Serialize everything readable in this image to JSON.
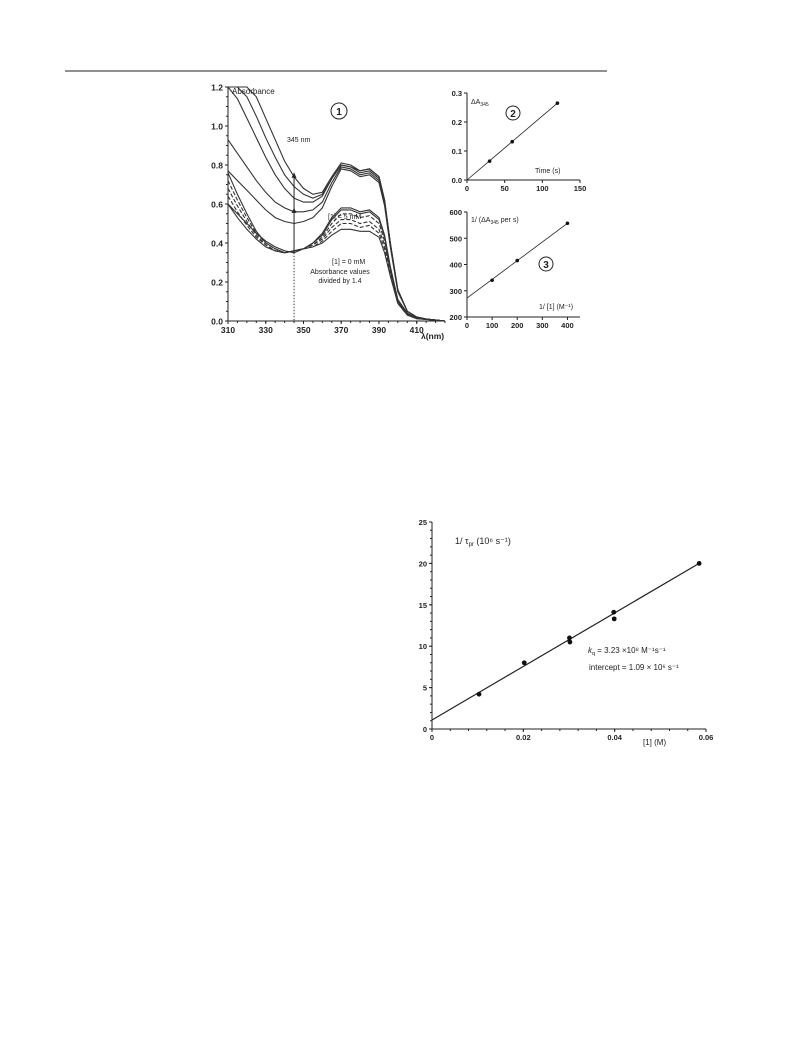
{
  "chart_data": [
    {
      "type": "line",
      "panel": "1",
      "ylabel": "Absorbance",
      "xlabel": "λ(nm)",
      "xlim": [
        310,
        425
      ],
      "ylim": [
        0,
        1.2
      ],
      "x_ticks": [
        "310",
        "330",
        "350",
        "370",
        "390",
        "410"
      ],
      "y_ticks": [
        "0.0",
        "0.2",
        "0.4",
        "0.6",
        "0.8",
        "1.0",
        "1.2"
      ],
      "annotations": {
        "wavelength": "345 nm",
        "high_conc": "[1] = 5 mM",
        "zero_conc": "[1] = 0 mM",
        "note_line1": "Absorbance values",
        "note_line2": "divided by 1.4"
      },
      "marked_wavelength": 345,
      "series": [
        {
          "style": "solid",
          "group": "5 mM",
          "x": [
            310,
            315,
            320,
            325,
            330,
            335,
            340,
            345,
            350,
            355,
            360,
            365,
            370,
            375,
            380,
            385,
            390,
            393,
            396,
            400,
            405,
            410,
            415,
            420,
            425
          ],
          "y": [
            1.2,
            1.2,
            1.2,
            1.15,
            1.04,
            0.93,
            0.82,
            0.74,
            0.68,
            0.65,
            0.66,
            0.74,
            0.81,
            0.8,
            0.77,
            0.78,
            0.74,
            0.62,
            0.4,
            0.16,
            0.05,
            0.02,
            0.01,
            0.005,
            0.0
          ]
        },
        {
          "style": "solid",
          "group": "5 mM",
          "x": [
            310,
            315,
            320,
            325,
            330,
            335,
            340,
            345,
            350,
            355,
            360,
            365,
            370,
            375,
            380,
            385,
            390,
            393,
            396,
            400,
            405,
            410,
            415,
            420,
            425
          ],
          "y": [
            1.2,
            1.2,
            1.15,
            1.05,
            0.94,
            0.84,
            0.75,
            0.69,
            0.65,
            0.63,
            0.65,
            0.73,
            0.8,
            0.79,
            0.77,
            0.78,
            0.74,
            0.62,
            0.4,
            0.16,
            0.05,
            0.02,
            0.01,
            0.005,
            0.0
          ]
        },
        {
          "style": "solid",
          "group": "5 mM",
          "x": [
            310,
            315,
            320,
            325,
            330,
            335,
            340,
            345,
            350,
            355,
            360,
            365,
            370,
            375,
            380,
            385,
            390,
            393,
            396,
            400,
            405,
            410,
            415,
            420,
            425
          ],
          "y": [
            1.2,
            1.14,
            1.04,
            0.94,
            0.84,
            0.75,
            0.68,
            0.63,
            0.61,
            0.61,
            0.64,
            0.73,
            0.8,
            0.79,
            0.76,
            0.77,
            0.73,
            0.61,
            0.4,
            0.16,
            0.05,
            0.02,
            0.01,
            0.005,
            0.0
          ]
        },
        {
          "style": "solid",
          "group": "5 mM",
          "x": [
            310,
            315,
            320,
            325,
            330,
            335,
            340,
            345,
            350,
            355,
            360,
            365,
            370,
            375,
            380,
            385,
            390,
            393,
            396,
            400,
            405,
            410,
            415,
            420,
            425
          ],
          "y": [
            0.93,
            0.86,
            0.79,
            0.72,
            0.66,
            0.61,
            0.58,
            0.56,
            0.56,
            0.57,
            0.61,
            0.71,
            0.79,
            0.78,
            0.75,
            0.76,
            0.72,
            0.6,
            0.39,
            0.16,
            0.05,
            0.02,
            0.01,
            0.005,
            0.0
          ]
        },
        {
          "style": "solid",
          "group": "5 mM",
          "x": [
            310,
            315,
            320,
            325,
            330,
            335,
            340,
            345,
            350,
            355,
            360,
            365,
            370,
            375,
            380,
            385,
            390,
            393,
            396,
            400,
            405,
            410,
            415,
            420,
            425
          ],
          "y": [
            0.77,
            0.72,
            0.67,
            0.62,
            0.57,
            0.53,
            0.51,
            0.5,
            0.51,
            0.53,
            0.58,
            0.69,
            0.78,
            0.77,
            0.74,
            0.75,
            0.71,
            0.59,
            0.38,
            0.15,
            0.05,
            0.02,
            0.01,
            0.005,
            0.0
          ]
        },
        {
          "style": "solid",
          "group": "0 mM",
          "x": [
            310,
            315,
            320,
            325,
            330,
            335,
            340,
            345,
            350,
            355,
            360,
            365,
            370,
            375,
            380,
            385,
            390,
            393,
            396,
            400,
            405,
            410,
            415,
            420,
            425
          ],
          "y": [
            0.6,
            0.55,
            0.5,
            0.45,
            0.41,
            0.38,
            0.36,
            0.35,
            0.37,
            0.4,
            0.45,
            0.53,
            0.58,
            0.58,
            0.56,
            0.57,
            0.53,
            0.44,
            0.28,
            0.11,
            0.04,
            0.015,
            0.01,
            0.005,
            0.0
          ]
        },
        {
          "style": "solid",
          "group": "0 mM",
          "x": [
            310,
            315,
            320,
            325,
            330,
            335,
            340,
            345,
            350,
            355,
            360,
            365,
            370,
            375,
            380,
            385,
            390,
            393,
            396,
            400,
            405,
            410,
            415,
            420,
            425
          ],
          "y": [
            0.76,
            0.65,
            0.55,
            0.46,
            0.4,
            0.37,
            0.35,
            0.36,
            0.37,
            0.4,
            0.44,
            0.52,
            0.57,
            0.57,
            0.55,
            0.56,
            0.52,
            0.43,
            0.27,
            0.11,
            0.04,
            0.015,
            0.01,
            0.005,
            0.0
          ]
        },
        {
          "style": "dashed",
          "group": "0 mM",
          "x": [
            310,
            315,
            320,
            325,
            330,
            335,
            340,
            345,
            350,
            355,
            360,
            365,
            370,
            375,
            380,
            385,
            390,
            393,
            396,
            400,
            405,
            410,
            415,
            420,
            425
          ],
          "y": [
            0.72,
            0.62,
            0.53,
            0.45,
            0.4,
            0.37,
            0.35,
            0.36,
            0.37,
            0.39,
            0.43,
            0.5,
            0.55,
            0.55,
            0.53,
            0.54,
            0.5,
            0.41,
            0.26,
            0.1,
            0.035,
            0.015,
            0.01,
            0.005,
            0.0
          ]
        },
        {
          "style": "dashed",
          "group": "0 mM",
          "x": [
            310,
            315,
            320,
            325,
            330,
            335,
            340,
            345,
            350,
            355,
            360,
            365,
            370,
            375,
            380,
            385,
            390,
            393,
            396,
            400,
            405,
            410,
            415,
            420,
            425
          ],
          "y": [
            0.68,
            0.59,
            0.51,
            0.44,
            0.39,
            0.36,
            0.35,
            0.36,
            0.37,
            0.39,
            0.42,
            0.48,
            0.52,
            0.52,
            0.5,
            0.51,
            0.47,
            0.39,
            0.25,
            0.1,
            0.035,
            0.015,
            0.01,
            0.005,
            0.0
          ]
        },
        {
          "style": "dashed",
          "group": "0 mM",
          "x": [
            310,
            315,
            320,
            325,
            330,
            335,
            340,
            345,
            350,
            355,
            360,
            365,
            370,
            375,
            380,
            385,
            390,
            393,
            396,
            400,
            405,
            410,
            415,
            420,
            425
          ],
          "y": [
            0.64,
            0.56,
            0.49,
            0.43,
            0.39,
            0.36,
            0.35,
            0.36,
            0.37,
            0.38,
            0.41,
            0.46,
            0.5,
            0.5,
            0.48,
            0.49,
            0.45,
            0.37,
            0.24,
            0.09,
            0.03,
            0.012,
            0.008,
            0.004,
            0.0
          ]
        },
        {
          "style": "solid",
          "group": "0 mM",
          "x": [
            310,
            315,
            320,
            325,
            330,
            335,
            340,
            345,
            350,
            355,
            360,
            365,
            370,
            375,
            380,
            385,
            390,
            393,
            396,
            400,
            405,
            410,
            415,
            420,
            425
          ],
          "y": [
            0.6,
            0.53,
            0.47,
            0.42,
            0.38,
            0.36,
            0.35,
            0.36,
            0.37,
            0.38,
            0.4,
            0.44,
            0.47,
            0.47,
            0.46,
            0.46,
            0.43,
            0.35,
            0.23,
            0.09,
            0.03,
            0.012,
            0.008,
            0.004,
            0.0
          ]
        }
      ],
      "arrow_start": 0.35,
      "arrow_end": 0.76
    },
    {
      "type": "scatter",
      "panel": "2",
      "ylabel": "ΔA",
      "ylabel_sub": "345",
      "xlabel": "Time  (s)",
      "xlim": [
        0,
        150
      ],
      "ylim": [
        0,
        0.3
      ],
      "x_ticks": [
        "0",
        "50",
        "100",
        "150"
      ],
      "y_ticks": [
        "0.0",
        "0.1",
        "0.2",
        "0.3"
      ],
      "x": [
        30,
        60,
        120
      ],
      "y": [
        0.065,
        0.132,
        0.265
      ],
      "fit_line": [
        [
          0,
          0.0
        ],
        [
          120,
          0.265
        ]
      ]
    },
    {
      "type": "scatter",
      "panel": "3",
      "ylabel": "1/ (ΔA",
      "ylabel_sub": "345",
      "ylabel_tail": " per s)",
      "xlabel": "1/ [1] (M⁻¹)",
      "xlim": [
        0,
        450
      ],
      "ylim": [
        200,
        600
      ],
      "x_ticks": [
        "0",
        "100",
        "200",
        "300",
        "400"
      ],
      "y_ticks": [
        "200",
        "300",
        "400",
        "500",
        "600"
      ],
      "x": [
        100,
        200,
        400
      ],
      "y": [
        340,
        415,
        557
      ],
      "fit_line": [
        [
          0,
          272
        ],
        [
          400,
          557
        ]
      ]
    },
    {
      "type": "scatter",
      "panel": "main",
      "ylabel": "1/ τ",
      "ylabel_sub": "pr",
      "ylabel_tail": " (10⁶ s⁻¹)",
      "xlabel": "[1] (M)",
      "xlim": [
        0,
        0.06
      ],
      "ylim": [
        0,
        25
      ],
      "x_ticks": [
        "0",
        "0.02",
        "0.04",
        "0.06"
      ],
      "y_ticks": [
        "0",
        "5",
        "10",
        "15",
        "20",
        "25"
      ],
      "x": [
        0.0103,
        0.0202,
        0.0301,
        0.0302,
        0.0398,
        0.0399,
        0.0585
      ],
      "y": [
        4.2,
        8.0,
        11.0,
        10.5,
        14.1,
        13.3,
        20.0
      ],
      "fit_line": [
        [
          0,
          1.09
        ],
        [
          0.0585,
          20.0
        ]
      ],
      "kq_label": "k",
      "kq_sub": "q",
      "kq_value": " = 3.23 ×10⁸ M⁻¹s⁻¹",
      "intercept_label": "intercept = 1.09  × 10⁶ s⁻¹"
    }
  ]
}
